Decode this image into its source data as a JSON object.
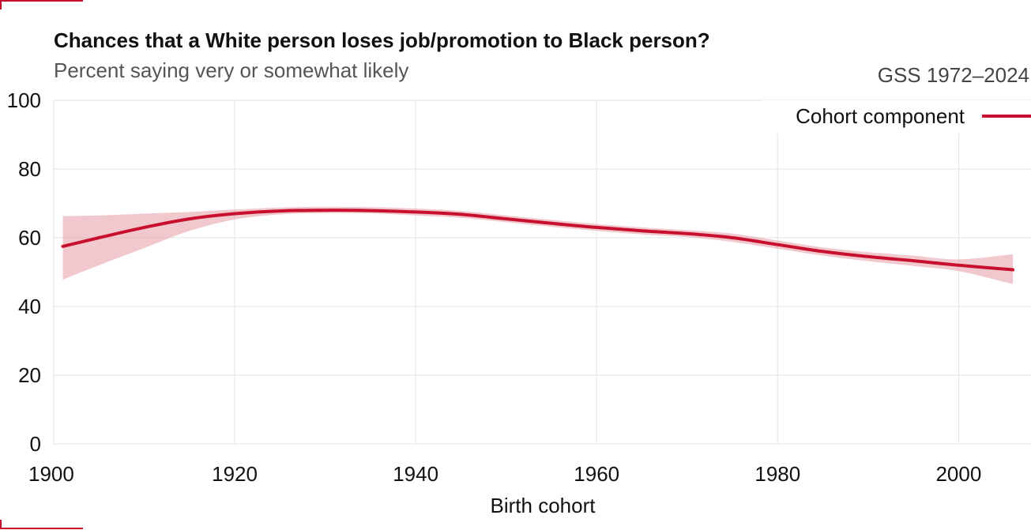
{
  "chart_data": {
    "type": "line",
    "title": "Chances that a White person loses job/promotion to Black person?",
    "subtitle": "Percent saying very or somewhat likely",
    "source": "GSS 1972–2024",
    "xlabel": "Birth cohort",
    "ylabel": "",
    "xlim": [
      1900,
      2008
    ],
    "ylim": [
      0,
      100
    ],
    "x_ticks": [
      1900,
      1920,
      1940,
      1960,
      1980,
      2000
    ],
    "y_ticks": [
      0,
      20,
      40,
      60,
      80,
      100
    ],
    "grid": true,
    "legend_position": "top-right",
    "series": [
      {
        "name": "Cohort component",
        "color": "#c8102e",
        "band_color": "#e8a3ae",
        "x": [
          1901,
          1905,
          1910,
          1915,
          1920,
          1925,
          1930,
          1935,
          1940,
          1945,
          1950,
          1955,
          1960,
          1965,
          1970,
          1975,
          1980,
          1985,
          1990,
          1995,
          2000,
          2006
        ],
        "y": [
          57.5,
          60,
          63,
          65.5,
          67,
          67.8,
          68,
          67.9,
          67.5,
          66.8,
          65.5,
          64.2,
          63,
          62,
          61.2,
          60,
          58,
          56,
          54.5,
          53.3,
          52,
          50.7
        ],
        "lower": [
          47.8,
          52,
          57,
          62,
          65.3,
          66.8,
          67.2,
          67.1,
          66.5,
          65.8,
          64.5,
          63.2,
          62,
          61,
          60.2,
          58.8,
          56.8,
          54.8,
          53.2,
          51.8,
          50.3,
          46.5
        ],
        "upper": [
          66.3,
          66.5,
          67,
          67.5,
          68.2,
          68.8,
          69,
          68.9,
          68.5,
          67.8,
          66.5,
          65.2,
          64,
          63,
          62.2,
          61.2,
          59.2,
          57.2,
          55.8,
          54.8,
          53.7,
          55.2
        ]
      }
    ]
  }
}
